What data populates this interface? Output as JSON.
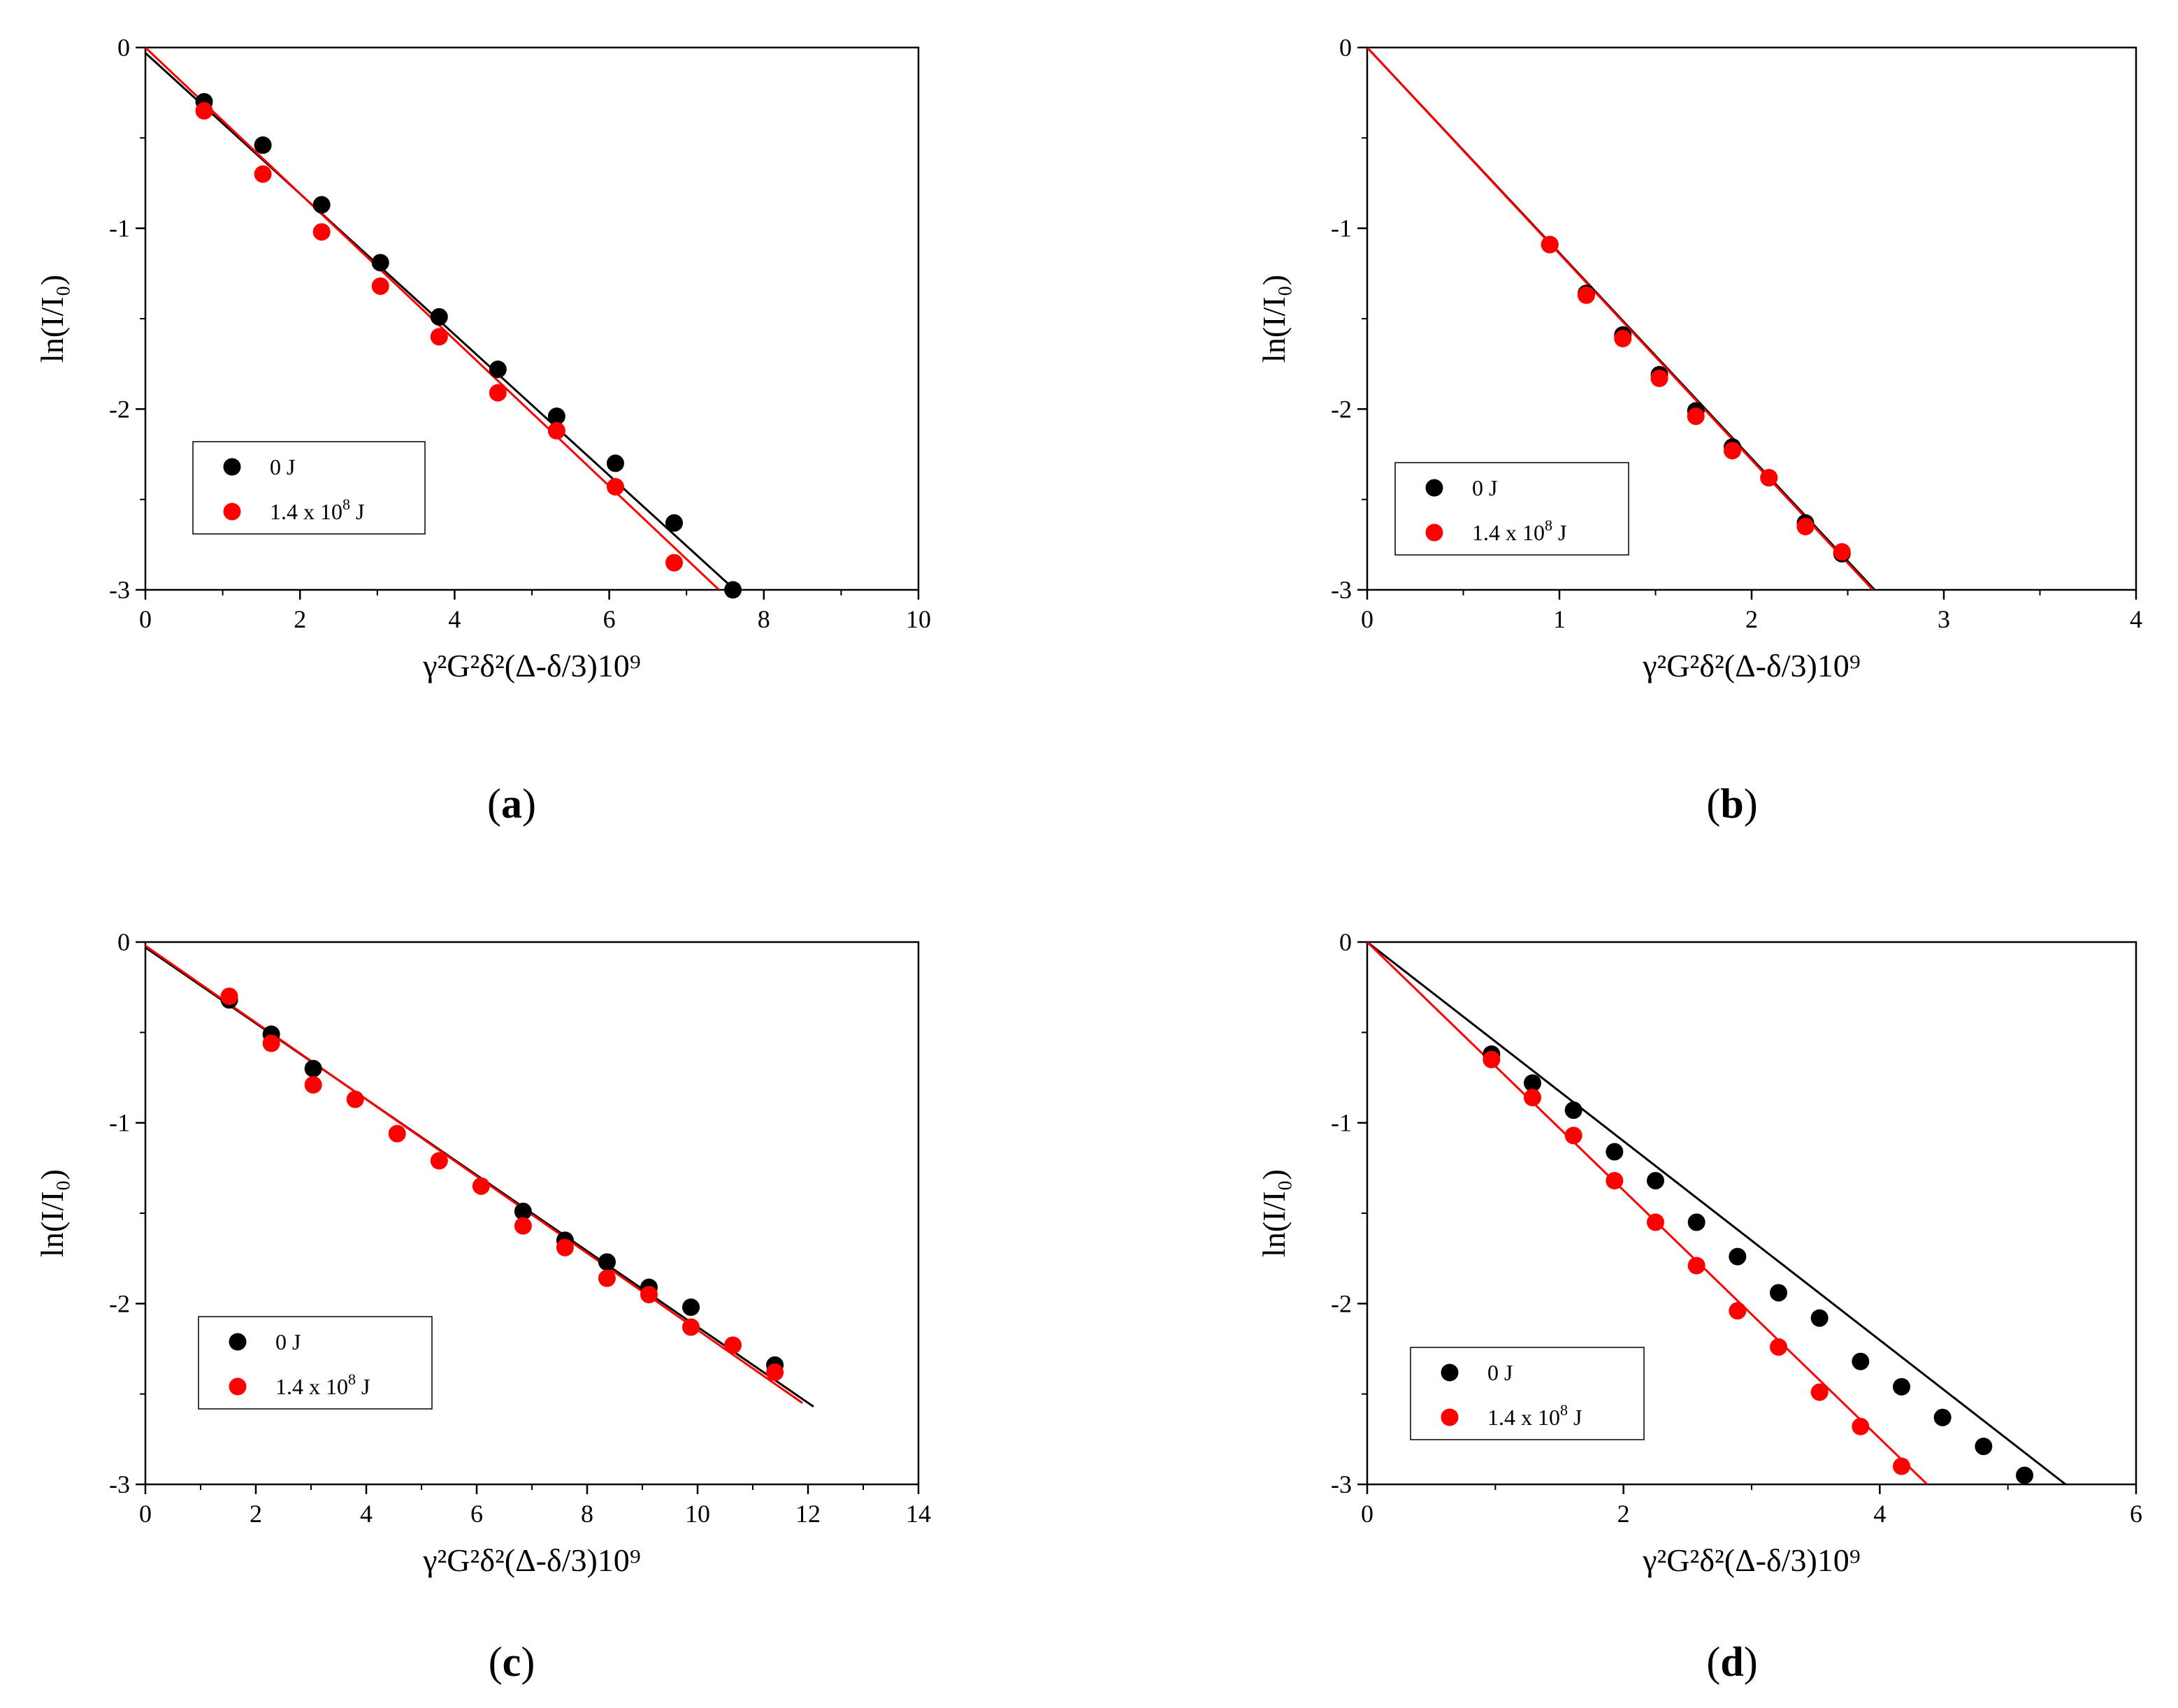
{
  "figure": {
    "series_colors": {
      "zero_j": "#000000",
      "high_j": "#ff0000"
    }
  },
  "chart_data": [
    {
      "type": "scatter",
      "panel": "a",
      "label": "a",
      "xlabel": "γ²G²δ²(Δ-δ/3)10⁹",
      "ylabel": "ln(I/I₀)",
      "xlim": [
        0,
        10
      ],
      "ylim": [
        -3,
        0
      ],
      "xticks": [
        0,
        2,
        4,
        6,
        8,
        10
      ],
      "yticks": [
        0,
        -1,
        -2,
        -3
      ],
      "xtick_labels": [
        "0",
        "2",
        "4",
        "6",
        "8",
        "10"
      ],
      "ytick_labels": [
        "0",
        "-1",
        "-2",
        "-3"
      ],
      "legend": {
        "position": "lower-left",
        "entries": [
          "0 J",
          "1.4 x 10^8 J"
        ]
      },
      "series": [
        {
          "name": "0 J",
          "color": "#000000",
          "x": [
            0.76,
            1.52,
            2.28,
            3.04,
            3.8,
            4.56,
            5.32,
            6.08,
            6.84,
            7.6
          ],
          "y": [
            -0.3,
            -0.54,
            -0.87,
            -1.19,
            -1.49,
            -1.78,
            -2.04,
            -2.3,
            -2.63,
            -3.0
          ],
          "fit": {
            "x": [
              0,
              7.65
            ],
            "y": [
              -0.03,
              -3.01
            ]
          }
        },
        {
          "name": "1.4 x 10^8 J",
          "color": "#ff0000",
          "x": [
            0.76,
            1.52,
            2.28,
            3.04,
            3.8,
            4.56,
            5.32,
            6.08,
            6.84
          ],
          "y": [
            -0.35,
            -0.7,
            -1.02,
            -1.32,
            -1.6,
            -1.91,
            -2.12,
            -2.43,
            -2.85
          ],
          "fit": {
            "x": [
              0,
              7.42
            ],
            "y": [
              0.0,
              -3.0
            ]
          }
        }
      ]
    },
    {
      "type": "scatter",
      "panel": "b",
      "label": "b",
      "xlabel": "γ²G²δ²(Δ-δ/3)10⁹",
      "ylabel": "ln(I/I₀)",
      "xlim": [
        0,
        4
      ],
      "ylim": [
        -3,
        0
      ],
      "xticks": [
        0,
        1,
        2,
        3,
        4
      ],
      "yticks": [
        0,
        -1,
        -2,
        -3
      ],
      "xtick_labels": [
        "0",
        "1",
        "2",
        "3",
        "4"
      ],
      "ytick_labels": [
        "0",
        "-1",
        "-2",
        "-3"
      ],
      "legend": {
        "position": "lower-left",
        "entries": [
          "0 J",
          "1.4 x 10^8 J"
        ]
      },
      "series": [
        {
          "name": "0 J",
          "color": "#000000",
          "x": [
            0.95,
            1.14,
            1.33,
            1.52,
            1.71,
            1.9,
            2.09,
            2.28,
            2.47
          ],
          "y": [
            -1.09,
            -1.36,
            -1.59,
            -1.81,
            -2.01,
            -2.21,
            -2.38,
            -2.63,
            -2.8
          ],
          "fit": {
            "x": [
              0,
              2.64
            ],
            "y": [
              0.0,
              -3.0
            ]
          }
        },
        {
          "name": "1.4 x 10^8 J",
          "color": "#ff0000",
          "x": [
            0.95,
            1.14,
            1.33,
            1.52,
            1.71,
            1.9,
            2.09,
            2.28,
            2.47
          ],
          "y": [
            -1.09,
            -1.37,
            -1.61,
            -1.83,
            -2.04,
            -2.23,
            -2.38,
            -2.65,
            -2.79
          ],
          "fit": {
            "x": [
              0,
              2.63
            ],
            "y": [
              0.0,
              -3.0
            ]
          }
        }
      ]
    },
    {
      "type": "scatter",
      "panel": "c",
      "label": "c",
      "xlabel": "γ²G²δ²(Δ-δ/3)10⁹",
      "ylabel": "ln(I/I₀)",
      "xlim": [
        0,
        14
      ],
      "ylim": [
        -3,
        0
      ],
      "xticks": [
        0,
        2,
        4,
        6,
        8,
        10,
        12,
        14
      ],
      "yticks": [
        0,
        -1,
        -2,
        -3
      ],
      "xtick_labels": [
        "0",
        "2",
        "4",
        "6",
        "8",
        "10",
        "12",
        "14"
      ],
      "ytick_labels": [
        "0",
        "-1",
        "-2",
        "-3"
      ],
      "legend": {
        "position": "lower-left",
        "entries": [
          "0 J",
          "1.4 x 10^8 J"
        ]
      },
      "series": [
        {
          "name": "0 J",
          "color": "#000000",
          "x": [
            1.52,
            2.28,
            3.04,
            6.84,
            7.6,
            8.36,
            9.12,
            9.88,
            11.4
          ],
          "y": [
            -0.32,
            -0.51,
            -0.7,
            -1.49,
            -1.65,
            -1.77,
            -1.91,
            -2.02,
            -2.34
          ],
          "fit": {
            "x": [
              0,
              12.1
            ],
            "y": [
              -0.03,
              -2.57
            ]
          }
        },
        {
          "name": "1.4 x 10^8 J",
          "color": "#ff0000",
          "x": [
            1.52,
            2.28,
            3.04,
            3.8,
            4.56,
            5.32,
            6.08,
            6.84,
            7.6,
            8.36,
            9.12,
            9.88,
            10.64,
            11.4
          ],
          "y": [
            -0.3,
            -0.56,
            -0.79,
            -0.87,
            -1.06,
            -1.21,
            -1.35,
            -1.57,
            -1.69,
            -1.86,
            -1.95,
            -2.13,
            -2.23,
            -2.38
          ],
          "fit": {
            "x": [
              0,
              11.9
            ],
            "y": [
              -0.02,
              -2.55
            ]
          }
        }
      ]
    },
    {
      "type": "scatter",
      "panel": "d",
      "label": "d",
      "xlabel": "γ²G²δ²(Δ-δ/3)10⁹",
      "ylabel": "ln(I/I₀)",
      "xlim": [
        0,
        6
      ],
      "ylim": [
        -3,
        0
      ],
      "xticks": [
        0,
        2,
        4,
        6
      ],
      "yticks": [
        0,
        -1,
        -2,
        -3
      ],
      "xtick_labels": [
        "0",
        "2",
        "4",
        "6"
      ],
      "ytick_labels": [
        "0",
        "-1",
        "-2",
        "-3"
      ],
      "legend": {
        "position": "lower-left",
        "entries": [
          "0 J",
          "1.4 x 10^8 J"
        ]
      },
      "series": [
        {
          "name": "0 J",
          "color": "#000000",
          "x": [
            0.97,
            1.29,
            1.61,
            1.93,
            2.25,
            2.57,
            2.89,
            3.21,
            3.53,
            3.85,
            4.17,
            4.49,
            4.81,
            5.13
          ],
          "y": [
            -0.62,
            -0.78,
            -0.93,
            -1.16,
            -1.32,
            -1.55,
            -1.74,
            -1.94,
            -2.08,
            -2.32,
            -2.46,
            -2.63,
            -2.79,
            -2.95
          ],
          "fit": {
            "x": [
              0,
              5.45
            ],
            "y": [
              0.0,
              -3.0
            ]
          }
        },
        {
          "name": "1.4 x 10^8 J",
          "color": "#ff0000",
          "x": [
            0.97,
            1.29,
            1.61,
            1.93,
            2.25,
            2.57,
            2.89,
            3.21,
            3.53,
            3.85,
            4.17
          ],
          "y": [
            -0.65,
            -0.86,
            -1.07,
            -1.32,
            -1.55,
            -1.79,
            -2.04,
            -2.24,
            -2.49,
            -2.68,
            -2.9
          ],
          "fit": {
            "x": [
              0,
              4.37
            ],
            "y": [
              0.0,
              -3.0
            ]
          }
        }
      ]
    }
  ]
}
